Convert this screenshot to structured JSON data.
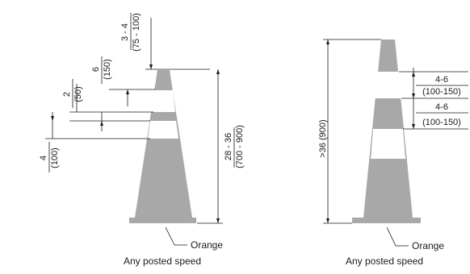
{
  "colors": {
    "cone": "#a8a8a8",
    "line": "#1a1a1a",
    "band": "#ffffff"
  },
  "left_cone": {
    "dim_top": {
      "line1": "3 - 4",
      "line2": "(75 - 100)"
    },
    "dim_upper_band": {
      "line1": "6",
      "line2": "(150)"
    },
    "dim_gap": {
      "line1": "2",
      "line2": "(50)"
    },
    "dim_lower_band": {
      "line1": "4",
      "line2": "(100)"
    },
    "dim_height": {
      "line1": "28 - 36",
      "line2": "(700 - 900)"
    },
    "color_label": "Orange",
    "caption": "Any posted speed"
  },
  "right_cone": {
    "dim_height": ">36 (900)",
    "dim_band_1": {
      "line1": "4-6",
      "line2": "(100-150)"
    },
    "dim_band_2": {
      "line1": "4-6",
      "line2": "(100-150)"
    },
    "color_label": "Orange",
    "caption": "Any posted speed"
  }
}
